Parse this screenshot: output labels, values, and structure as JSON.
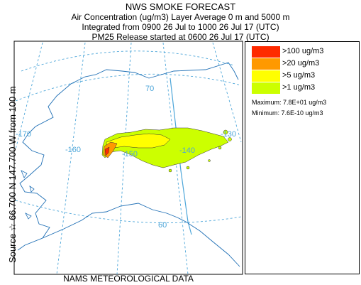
{
  "header": {
    "title": "NWS SMOKE FORECAST",
    "line1": "Air Concentration (ug/m3) Layer Average    0 m and  5000 m",
    "line2": "Integrated from 0900 26 Jul to 1000 26 Jul 17 (UTC)",
    "line3": "PM25 Release started at 0600 26 Jul 17 (UTC)"
  },
  "source_label": "Source ☆ 66.700  N 147.700  W    from   100 m",
  "bottom_label": "NAMS METEOROLOGICAL DATA",
  "map_labels": {
    "lat70": "70",
    "lat60": "60",
    "lon170": "-170",
    "lon160": "-160",
    "lon150": "-150",
    "lon140": "-140",
    "lon130": "-130"
  },
  "legend": [
    {
      "label": ">100 ug/m3",
      "color": "#ff2a00"
    },
    {
      "label": ">20 ug/m3",
      "color": "#ff9900"
    },
    {
      "label": ">5 ug/m3",
      "color": "#ffff00"
    },
    {
      "label": ">1 ug/m3",
      "color": "#ccff00"
    }
  ],
  "stats": {
    "maximum": "Maximum:  7.8E+01 ug/m3",
    "minimum": "Minimum:  7.6E-10 ug/m3"
  },
  "colors": {
    "grid": "#4da6d9",
    "coast": "#1f6fb5",
    "border": "#4da6d9"
  }
}
